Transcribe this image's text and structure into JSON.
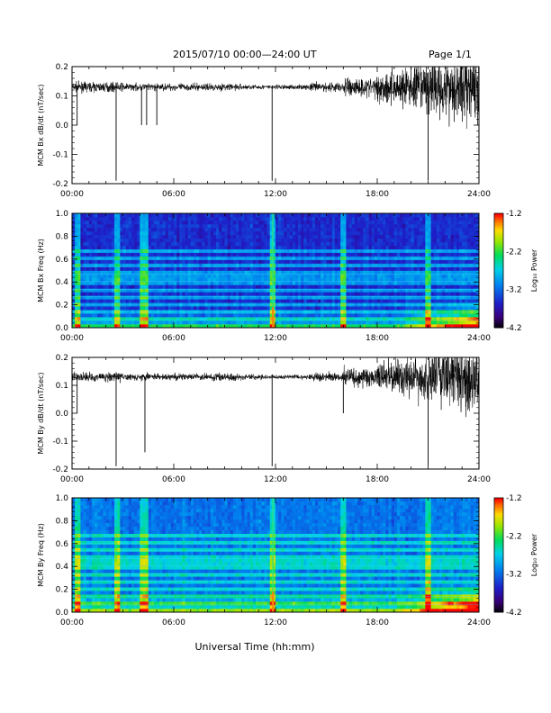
{
  "header": {
    "title": "2015/07/10  00:00—24:00 UT",
    "page": "Page 1/1"
  },
  "xlabel": "Universal Time (hh:mm)",
  "colors": {
    "trace": "#000000",
    "background": "#ffffff"
  },
  "colorbar": {
    "label": "Log₁₀ Power",
    "ticks": [
      "-1.2",
      "-2.2",
      "-3.2",
      "-4.2"
    ]
  },
  "chart_data": [
    {
      "type": "line",
      "ylabel": "MCM Bx dB/dt (nT/sec)",
      "xlim": [
        0,
        24
      ],
      "ylim": [
        -0.2,
        0.2
      ],
      "xticks": [
        "00:00",
        "06:00",
        "12:00",
        "18:00",
        "24:00"
      ],
      "yticks": [
        "0.2",
        "0.1",
        "0.0",
        "-0.1",
        "-0.2"
      ],
      "baseline": 0.13,
      "spikes": [
        {
          "t": 0.3,
          "y": 0.0
        },
        {
          "t": 2.6,
          "y": -0.19
        },
        {
          "t": 4.1,
          "y": 0.0
        },
        {
          "t": 4.4,
          "y": 0.0
        },
        {
          "t": 5.0,
          "y": 0.0
        },
        {
          "t": 11.8,
          "y": -0.19
        },
        {
          "t": 21.0,
          "y": -0.19
        }
      ]
    },
    {
      "type": "heatmap",
      "ylabel": "MCM Bx Freq (Hz)",
      "xlim": [
        0,
        24
      ],
      "ylim": [
        0,
        1.0
      ],
      "xticks": [
        "00:00",
        "06:00",
        "12:00",
        "18:00",
        "24:00"
      ],
      "yticks": [
        "1.0",
        "0.8",
        "0.6",
        "0.4",
        "0.2",
        "0.0"
      ],
      "zlim": [
        -4.2,
        -1.2
      ],
      "colorbar_label": "Log10 Power"
    },
    {
      "type": "line",
      "ylabel": "MCM By dB/dt (nT/sec)",
      "xlim": [
        0,
        24
      ],
      "ylim": [
        -0.2,
        0.2
      ],
      "xticks": [
        "00:00",
        "06:00",
        "12:00",
        "18:00",
        "24:00"
      ],
      "yticks": [
        "0.2",
        "0.1",
        "0.0",
        "-0.1",
        "-0.2"
      ],
      "baseline": 0.13,
      "spikes": [
        {
          "t": 0.3,
          "y": 0.0
        },
        {
          "t": 2.6,
          "y": -0.19
        },
        {
          "t": 4.3,
          "y": -0.14
        },
        {
          "t": 11.8,
          "y": -0.19
        },
        {
          "t": 16.0,
          "y": 0.0
        },
        {
          "t": 21.0,
          "y": -0.19
        }
      ]
    },
    {
      "type": "heatmap",
      "ylabel": "MCM By Freq (Hz)",
      "xlim": [
        0,
        24
      ],
      "ylim": [
        0,
        1.0
      ],
      "xticks": [
        "00:00",
        "06:00",
        "12:00",
        "18:00",
        "24:00"
      ],
      "yticks": [
        "1.0",
        "0.8",
        "0.6",
        "0.4",
        "0.2",
        "0.0"
      ],
      "zlim": [
        -4.2,
        -1.2
      ],
      "colorbar_label": "Log10 Power"
    }
  ]
}
